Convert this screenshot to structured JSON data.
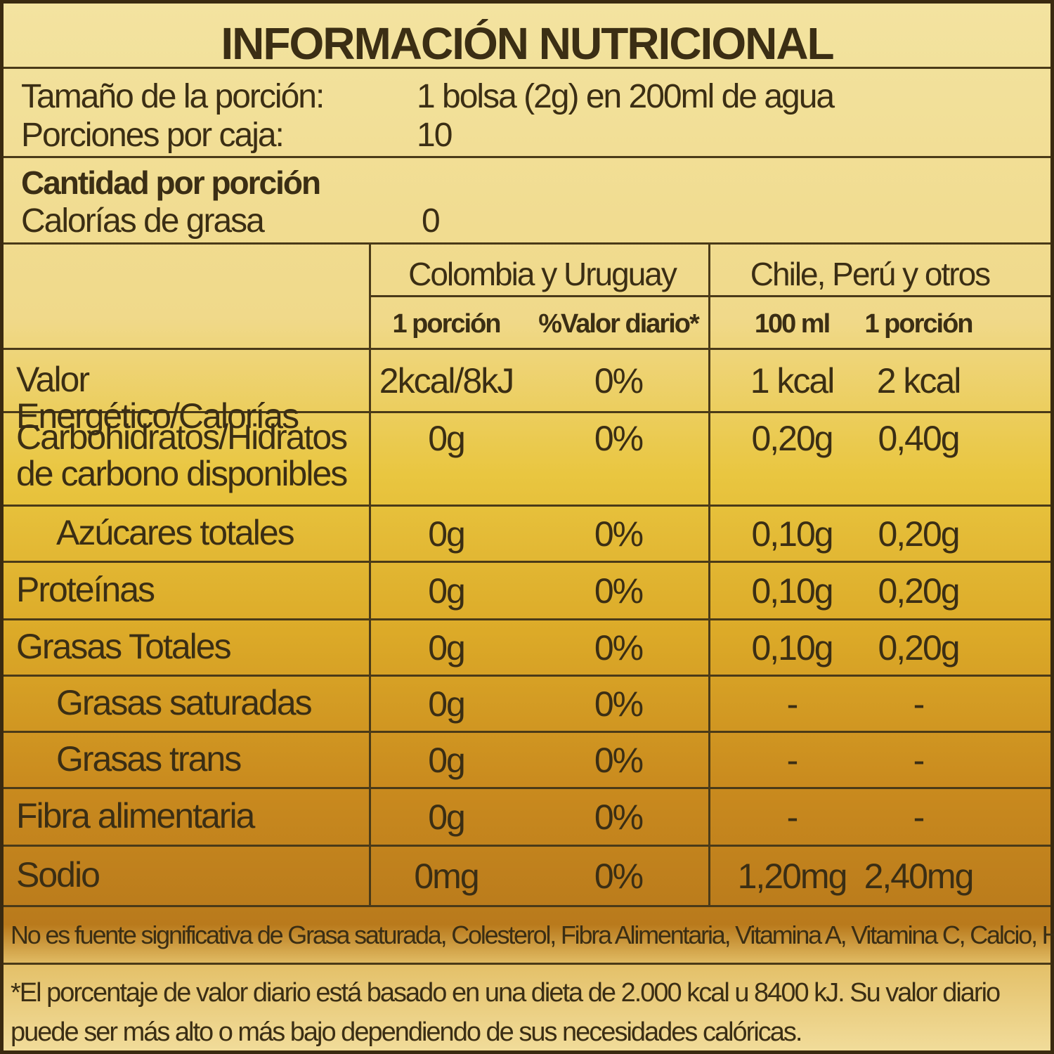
{
  "title": "INFORMACIÓN NUTRICIONAL",
  "serving": [
    [
      "Tamaño de la porción:",
      "1 bolsa (2g) en 200ml de agua"
    ],
    [
      "Porciones por caja:",
      "10"
    ]
  ],
  "amount_header": "Cantidad por porción",
  "fat_calories": [
    "Calorías de grasa",
    "0"
  ],
  "table": {
    "groups": [
      "Colombia y Uruguay",
      "Chile, Perú y otros"
    ],
    "subheaders": [
      "1 porción",
      "%Valor diario*",
      "100 ml",
      "1 porción"
    ],
    "rows": [
      [
        "Valor Energético/Calorías",
        "2kcal/8kJ",
        "0%",
        "1 kcal",
        "2 kcal"
      ],
      [
        "Carbohidratos/Hidratos de carbono disponibles",
        "0g",
        "0%",
        "0,20g",
        "0,40g"
      ],
      [
        "Azúcares totales",
        "0g",
        "0%",
        "0,10g",
        "0,20g"
      ],
      [
        "Proteínas",
        "0g",
        "0%",
        "0,10g",
        "0,20g"
      ],
      [
        "Grasas Totales",
        "0g",
        "0%",
        "0,10g",
        "0,20g"
      ],
      [
        "Grasas saturadas",
        "0g",
        "0%",
        "-",
        "-"
      ],
      [
        "Grasas trans",
        "0g",
        "0%",
        "-",
        "-"
      ],
      [
        "Fibra alimentaria",
        "0g",
        "0%",
        "-",
        "-"
      ],
      [
        "Sodio",
        "0mg",
        "0%",
        "1,20mg",
        "2,40mg"
      ]
    ]
  },
  "footnotes": [
    "No es fuente significativa de Grasa saturada, Colesterol, Fibra Alimentaria, Vitamina A, Vitamina C, Calcio, Hierro.",
    "*El porcentaje de valor diario está basado en una dieta de 2.000 kcal u 8400 kJ. Su valor diario puede ser más alto o más bajo dependiendo de sus necesidades calóricas."
  ]
}
